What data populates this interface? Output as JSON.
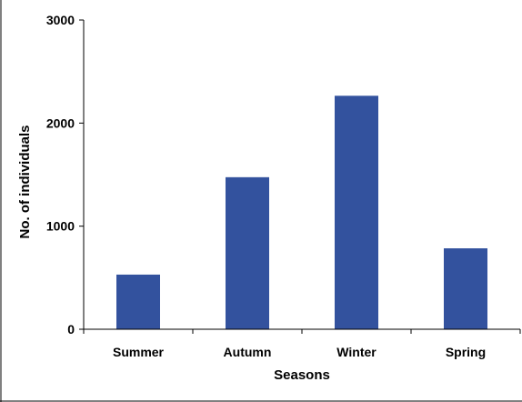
{
  "chart_data": {
    "type": "bar",
    "title": "",
    "xlabel": "Seasons",
    "ylabel": "No. of individuals",
    "categories": [
      "Summer",
      "Autumn",
      "Winter",
      "Spring"
    ],
    "series": [
      {
        "values": [
          530,
          1475,
          2265,
          785
        ],
        "color": "#33529e"
      }
    ],
    "ylim": [
      0,
      3000
    ],
    "yticks": [
      0,
      1000,
      2000,
      3000
    ],
    "ytick_labels": [
      "0",
      "1000",
      "2000",
      "3000"
    ],
    "grid": false,
    "legend": "none"
  }
}
